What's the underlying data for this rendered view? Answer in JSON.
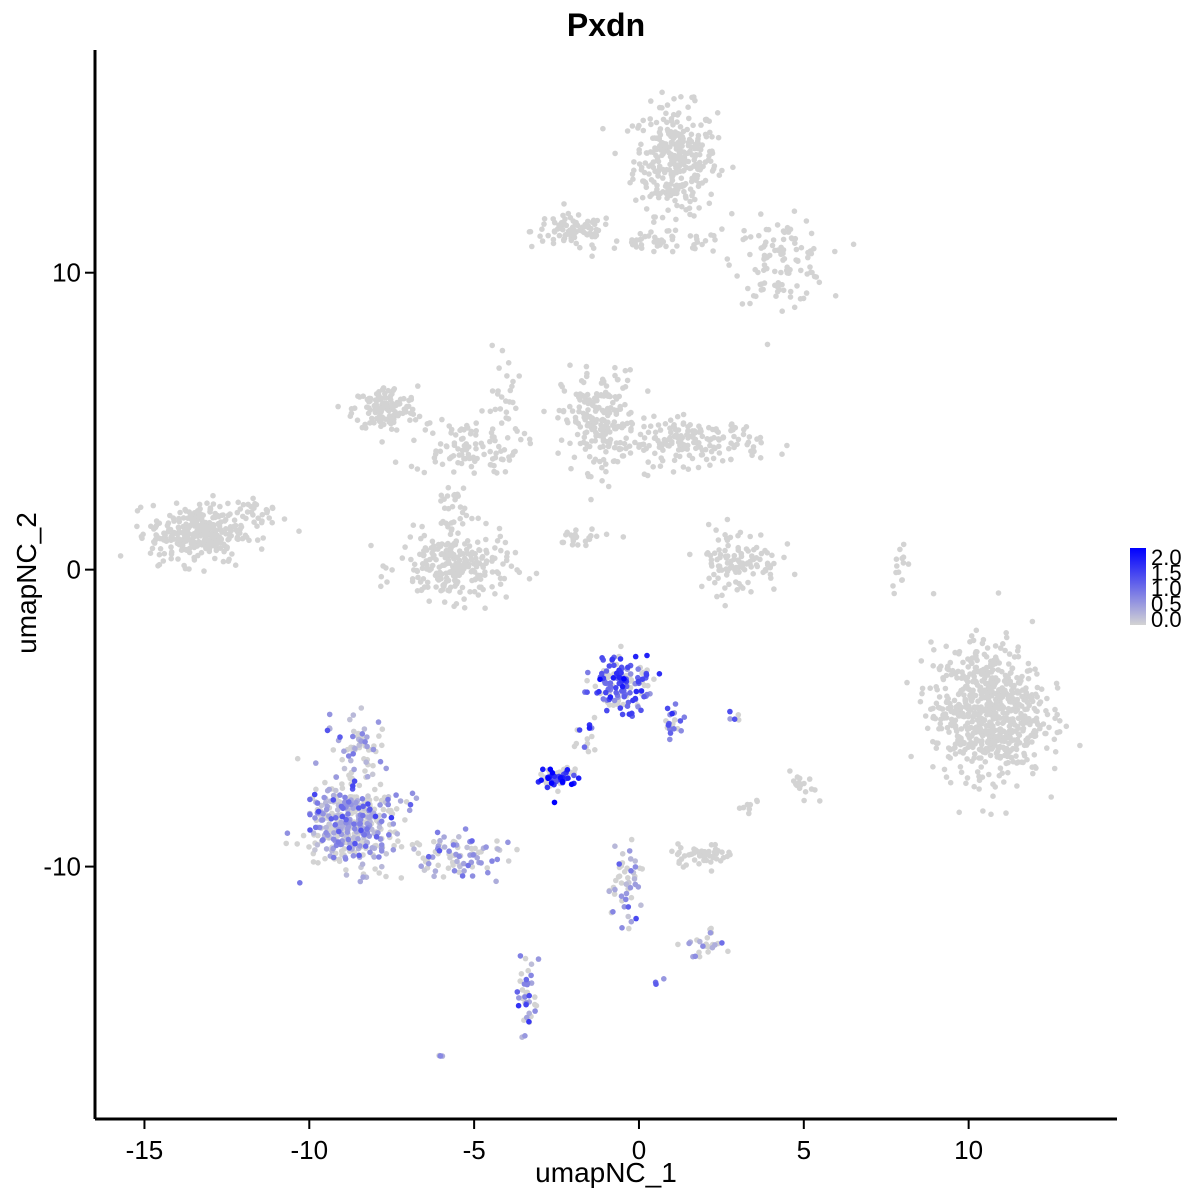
{
  "chart_data": {
    "type": "scatter",
    "title": "Pxdn",
    "xlabel": "umapNC_1",
    "ylabel": "umapNC_2",
    "xlim": [
      -16.5,
      14.5
    ],
    "ylim": [
      -18.5,
      17.5
    ],
    "xticks": [
      -15,
      -10,
      -5,
      0,
      5,
      10
    ],
    "yticks": [
      -10,
      0,
      10
    ],
    "grid": false,
    "legend": {
      "position": "right",
      "type": "colorbar",
      "min": 0.0,
      "max": 2.0,
      "ticks": [
        "2.0",
        "1.5",
        "1.0",
        "0.5",
        "0.0"
      ],
      "low_color": "#d3d3d3",
      "high_color": "#0000ff"
    },
    "clusters": [
      {
        "cx": 1.1,
        "cy": 13.8,
        "sx": 0.9,
        "sy": 1.3,
        "n": 320,
        "expr": 0.0
      },
      {
        "cx": -2.0,
        "cy": 11.4,
        "sx": 0.9,
        "sy": 0.4,
        "n": 90,
        "expr": 0.0
      },
      {
        "cx": 0.8,
        "cy": 11.0,
        "sx": 1.4,
        "sy": 0.25,
        "n": 50,
        "expr": 0.0
      },
      {
        "cx": 4.3,
        "cy": 10.4,
        "sx": 1.0,
        "sy": 1.0,
        "n": 110,
        "expr": 0.0
      },
      {
        "cx": -7.7,
        "cy": 5.4,
        "sx": 0.7,
        "sy": 0.55,
        "n": 130,
        "expr": 0.0
      },
      {
        "cx": -5.3,
        "cy": 4.2,
        "sx": 1.2,
        "sy": 0.7,
        "n": 90,
        "expr": 0.0
      },
      {
        "cx": -4.1,
        "cy": 5.4,
        "sx": 0.3,
        "sy": 1.6,
        "n": 30,
        "expr": 0.0
      },
      {
        "cx": -1.2,
        "cy": 5.0,
        "sx": 0.8,
        "sy": 1.2,
        "n": 200,
        "expr": 0.0
      },
      {
        "cx": 1.6,
        "cy": 4.3,
        "sx": 1.5,
        "sy": 0.55,
        "n": 180,
        "expr": 0.0
      },
      {
        "cx": -5.6,
        "cy": 0.1,
        "sx": 1.2,
        "sy": 0.8,
        "n": 240,
        "expr": 0.0
      },
      {
        "cx": -5.6,
        "cy": 2.3,
        "sx": 0.35,
        "sy": 1.4,
        "n": 40,
        "expr": 0.0
      },
      {
        "cx": -13.4,
        "cy": 1.2,
        "sx": 1.0,
        "sy": 0.7,
        "n": 300,
        "expr": 0.0
      },
      {
        "cx": -11.5,
        "cy": 1.9,
        "sx": 0.6,
        "sy": 0.4,
        "n": 30,
        "expr": 0.0
      },
      {
        "cx": 3.0,
        "cy": 0.3,
        "sx": 0.9,
        "sy": 0.8,
        "n": 110,
        "expr": 0.0
      },
      {
        "cx": -1.8,
        "cy": 1.1,
        "sx": 0.9,
        "sy": 0.25,
        "n": 25,
        "expr": 0.0
      },
      {
        "cx": 7.9,
        "cy": 0.2,
        "sx": 0.15,
        "sy": 0.6,
        "n": 14,
        "expr": 0.0
      },
      {
        "cx": 10.6,
        "cy": -4.8,
        "sx": 1.2,
        "sy": 1.6,
        "n": 700,
        "expr": 0.0
      },
      {
        "cx": 1.9,
        "cy": -9.6,
        "sx": 0.7,
        "sy": 0.25,
        "n": 50,
        "expr": 0.0
      },
      {
        "cx": 5.0,
        "cy": -7.4,
        "sx": 0.3,
        "sy": 0.4,
        "n": 16,
        "expr": 0.0
      },
      {
        "cx": 3.3,
        "cy": -8.0,
        "sx": 0.3,
        "sy": 0.3,
        "n": 8,
        "expr": 0.0
      },
      {
        "cx": -8.7,
        "cy": -8.6,
        "sx": 1.0,
        "sy": 1.0,
        "n": 420,
        "expr": 0.45
      },
      {
        "cx": -8.5,
        "cy": -6.0,
        "sx": 0.6,
        "sy": 0.7,
        "n": 60,
        "expr": 0.35
      },
      {
        "cx": -5.5,
        "cy": -9.6,
        "sx": 1.0,
        "sy": 0.5,
        "n": 90,
        "expr": 0.5
      },
      {
        "cx": -0.5,
        "cy": -3.8,
        "sx": 0.6,
        "sy": 0.7,
        "n": 150,
        "expr": 1.2
      },
      {
        "cx": 1.0,
        "cy": -5.2,
        "sx": 0.2,
        "sy": 0.4,
        "n": 20,
        "expr": 0.9
      },
      {
        "cx": -2.4,
        "cy": -7.0,
        "sx": 0.4,
        "sy": 0.25,
        "n": 60,
        "expr": 1.7
      },
      {
        "cx": -1.6,
        "cy": -5.8,
        "sx": 0.25,
        "sy": 0.6,
        "n": 15,
        "expr": 1.3
      },
      {
        "cx": -0.4,
        "cy": -10.6,
        "sx": 0.35,
        "sy": 1.0,
        "n": 50,
        "expr": 0.5
      },
      {
        "cx": 2.0,
        "cy": -12.6,
        "sx": 0.5,
        "sy": 0.35,
        "n": 25,
        "expr": 0.3
      },
      {
        "cx": -3.4,
        "cy": -14.5,
        "sx": 0.2,
        "sy": 1.0,
        "n": 40,
        "expr": 0.55
      },
      {
        "cx": 2.9,
        "cy": -5.0,
        "sx": 0.15,
        "sy": 0.1,
        "n": 5,
        "expr": 0.7
      },
      {
        "cx": -6.0,
        "cy": -16.3,
        "sx": 0.1,
        "sy": 0.1,
        "n": 4,
        "expr": 0.6
      },
      {
        "cx": 0.6,
        "cy": -13.9,
        "sx": 0.1,
        "sy": 0.1,
        "n": 3,
        "expr": 0.6
      }
    ]
  }
}
